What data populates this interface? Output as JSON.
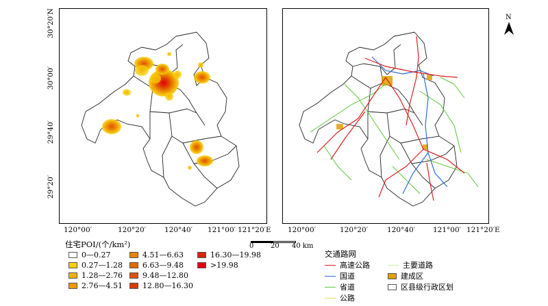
{
  "map_left": {
    "lat_labels": [
      "30°20′N",
      "30°00′",
      "29°40′",
      "29°20′"
    ],
    "lon_labels": [
      "120°00′",
      "120°20′",
      "120°40′",
      "121°00′",
      "121°20′E"
    ]
  },
  "map_right": {
    "lon_labels": [
      "120°00′",
      "120°20′",
      "120°40′",
      "121°00′",
      "121°20′E"
    ]
  },
  "north": "N",
  "scale": {
    "labels": [
      "0",
      "20",
      "40 km"
    ]
  },
  "legend_poi": {
    "title": "住宅POI/(个/km²)",
    "items": [
      {
        "label": "0—0.27",
        "color": "#ffffff"
      },
      {
        "label": "0.27—1.28",
        "color": "#f7d000"
      },
      {
        "label": "1.28—2.76",
        "color": "#f2b400"
      },
      {
        "label": "2.76—4.51",
        "color": "#ee9a00"
      },
      {
        "label": "4.51—6.63",
        "color": "#ea8200"
      },
      {
        "label": "6.63—9.48",
        "color": "#e36a00"
      },
      {
        "label": "9.48—12.80",
        "color": "#dd5200"
      },
      {
        "label": "12.80—16.30",
        "color": "#d73a00"
      },
      {
        "label": "16.30—19.98",
        "color": "#d82400"
      },
      {
        "label": ">19.98",
        "color": "#e00010"
      }
    ]
  },
  "legend_transport": {
    "title": "交通路网",
    "items": [
      {
        "label": "高速公路",
        "color": "#d81e1e",
        "kind": "line"
      },
      {
        "label": "国道",
        "color": "#2a6fd6",
        "kind": "line"
      },
      {
        "label": "省道",
        "color": "#5ac83a",
        "kind": "line"
      },
      {
        "label": "公路",
        "color": "#f0e04a",
        "kind": "line"
      },
      {
        "label": "主要道路",
        "color": "#c8f0a0",
        "kind": "line"
      },
      {
        "label": "建成区",
        "color": "#e0a000",
        "kind": "box"
      },
      {
        "label": "区县级行政区划",
        "color": "#ffffff",
        "kind": "box"
      }
    ]
  }
}
